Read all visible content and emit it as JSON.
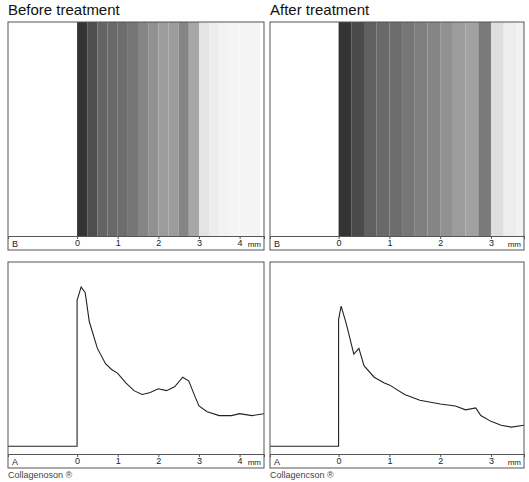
{
  "chart_data": [
    {
      "title": "Before treatment",
      "caption": "Collagenoson ®",
      "b_mode": {
        "type": "heatmap",
        "letter": "B",
        "xlabel": "mm",
        "xlim": [
          -1.7,
          4.6
        ],
        "xticks": [
          0,
          1,
          2,
          3,
          4
        ],
        "bins": [
          0,
          0.25,
          0.5,
          0.75,
          1,
          1.25,
          1.5,
          1.75,
          2,
          2.25,
          2.5,
          2.75,
          3,
          3.25,
          3.5,
          3.75,
          4,
          4.25,
          4.5
        ],
        "intensity": [
          92,
          80,
          70,
          68,
          66,
          62,
          55,
          50,
          45,
          45,
          55,
          40,
          12,
          8,
          6,
          5,
          5,
          5
        ],
        "intensity_lim": [
          0,
          100
        ]
      },
      "a_mode": {
        "type": "line",
        "letter": "A",
        "xlabel": "mm",
        "color": "#222222",
        "xlim": [
          -1.7,
          4.6
        ],
        "xticks": [
          0,
          1,
          2,
          3,
          4
        ],
        "ylim": [
          0,
          100
        ],
        "tick_labels": "x",
        "x": [
          -1.7,
          0,
          0,
          0.1,
          0.2,
          0.3,
          0.5,
          0.7,
          0.85,
          1.0,
          1.2,
          1.4,
          1.6,
          1.8,
          2.0,
          2.2,
          2.4,
          2.6,
          2.75,
          2.9,
          3.0,
          3.2,
          3.5,
          3.8,
          4.0,
          4.3,
          4.6
        ],
        "values": [
          4,
          4,
          80,
          87,
          84,
          69,
          55,
          47,
          44,
          42,
          37,
          33,
          31,
          32,
          34,
          33,
          35,
          40,
          38,
          30,
          25,
          22,
          20,
          20,
          21,
          20,
          21
        ]
      }
    },
    {
      "title": "After treatment",
      "caption": "Collagencson ®",
      "b_mode": {
        "type": "heatmap",
        "letter": "B",
        "xlabel": "mm",
        "xlim": [
          -1.35,
          3.65
        ],
        "xticks": [
          0,
          1,
          2,
          3
        ],
        "bins": [
          0,
          0.25,
          0.5,
          0.75,
          1,
          1.25,
          1.5,
          1.75,
          2,
          2.25,
          2.5,
          2.75,
          3,
          3.25,
          3.5,
          3.65
        ],
        "intensity": [
          92,
          82,
          72,
          68,
          66,
          62,
          58,
          55,
          50,
          45,
          42,
          60,
          15,
          8,
          6
        ],
        "intensity_lim": [
          0,
          100
        ]
      },
      "a_mode": {
        "type": "line",
        "letter": "A",
        "xlabel": "mm",
        "color": "#222222",
        "xlim": [
          -1.35,
          3.65
        ],
        "xticks": [
          0,
          1,
          2,
          3
        ],
        "ylim": [
          0,
          100
        ],
        "tick_labels": "x",
        "x": [
          -1.35,
          0,
          0,
          0.05,
          0.15,
          0.3,
          0.4,
          0.5,
          0.7,
          0.9,
          1.0,
          1.3,
          1.6,
          2.0,
          2.3,
          2.5,
          2.7,
          2.8,
          3.0,
          3.2,
          3.4,
          3.65
        ],
        "values": [
          4,
          4,
          70,
          77,
          68,
          52,
          55,
          46,
          40,
          37,
          36,
          31,
          28,
          26,
          25,
          23,
          24,
          20,
          17,
          15,
          14,
          15
        ]
      }
    }
  ]
}
